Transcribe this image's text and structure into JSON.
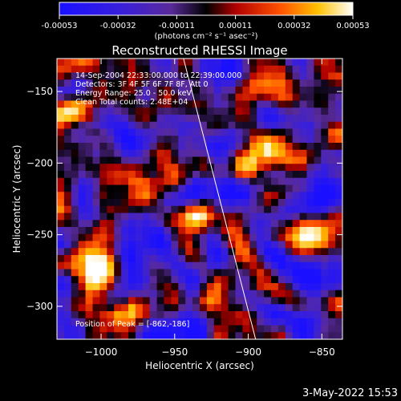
{
  "colorbar": {
    "ticks": [
      "-0.00053",
      "-0.00032",
      "-0.00011",
      "0.00011",
      "0.00032",
      "0.00053"
    ],
    "unit_label": "(photons cm⁻² s⁻¹ asec⁻²)",
    "range": [
      -0.00053,
      0.00053
    ]
  },
  "chart_data": {
    "type": "heatmap",
    "title": "Reconstructed RHESSI Image",
    "xlabel": "Heliocentric X (arcsec)",
    "ylabel": "Heliocentric Y (arcsec)",
    "xlim": [
      -1030,
      -836
    ],
    "ylim": [
      -323,
      -127
    ],
    "x_ticks": [
      -1000,
      -950,
      -900,
      -850
    ],
    "y_ticks": [
      -150,
      -200,
      -250,
      -300
    ],
    "x_tick_labels": [
      "−1000",
      "−950",
      "−900",
      "−850"
    ],
    "y_tick_labels": [
      "−150",
      "−200",
      "−250",
      "−300"
    ],
    "info_lines": [
      "14-Sep-2004 22:33:00.000 to 22:39:00.000",
      "Detectors: 3F 4F 5F 6F 7F 8F, Att 0",
      "Energy Range: 25.0 - 50.0 keV",
      "Clean    Total counts: 2.48E+04"
    ],
    "peak_label": "Position of Peak = [-862,-186]",
    "peak": [
      -862,
      -186
    ],
    "limb_line": [
      [
        -944,
        -127
      ],
      [
        -895,
        -323
      ]
    ],
    "colormap": "red-temperature diverging (blue-purple negative, black zero, red-orange-yellow-white positive)",
    "grid": false
  },
  "footer": {
    "date_stamp": "3-May-2022 15:53"
  }
}
